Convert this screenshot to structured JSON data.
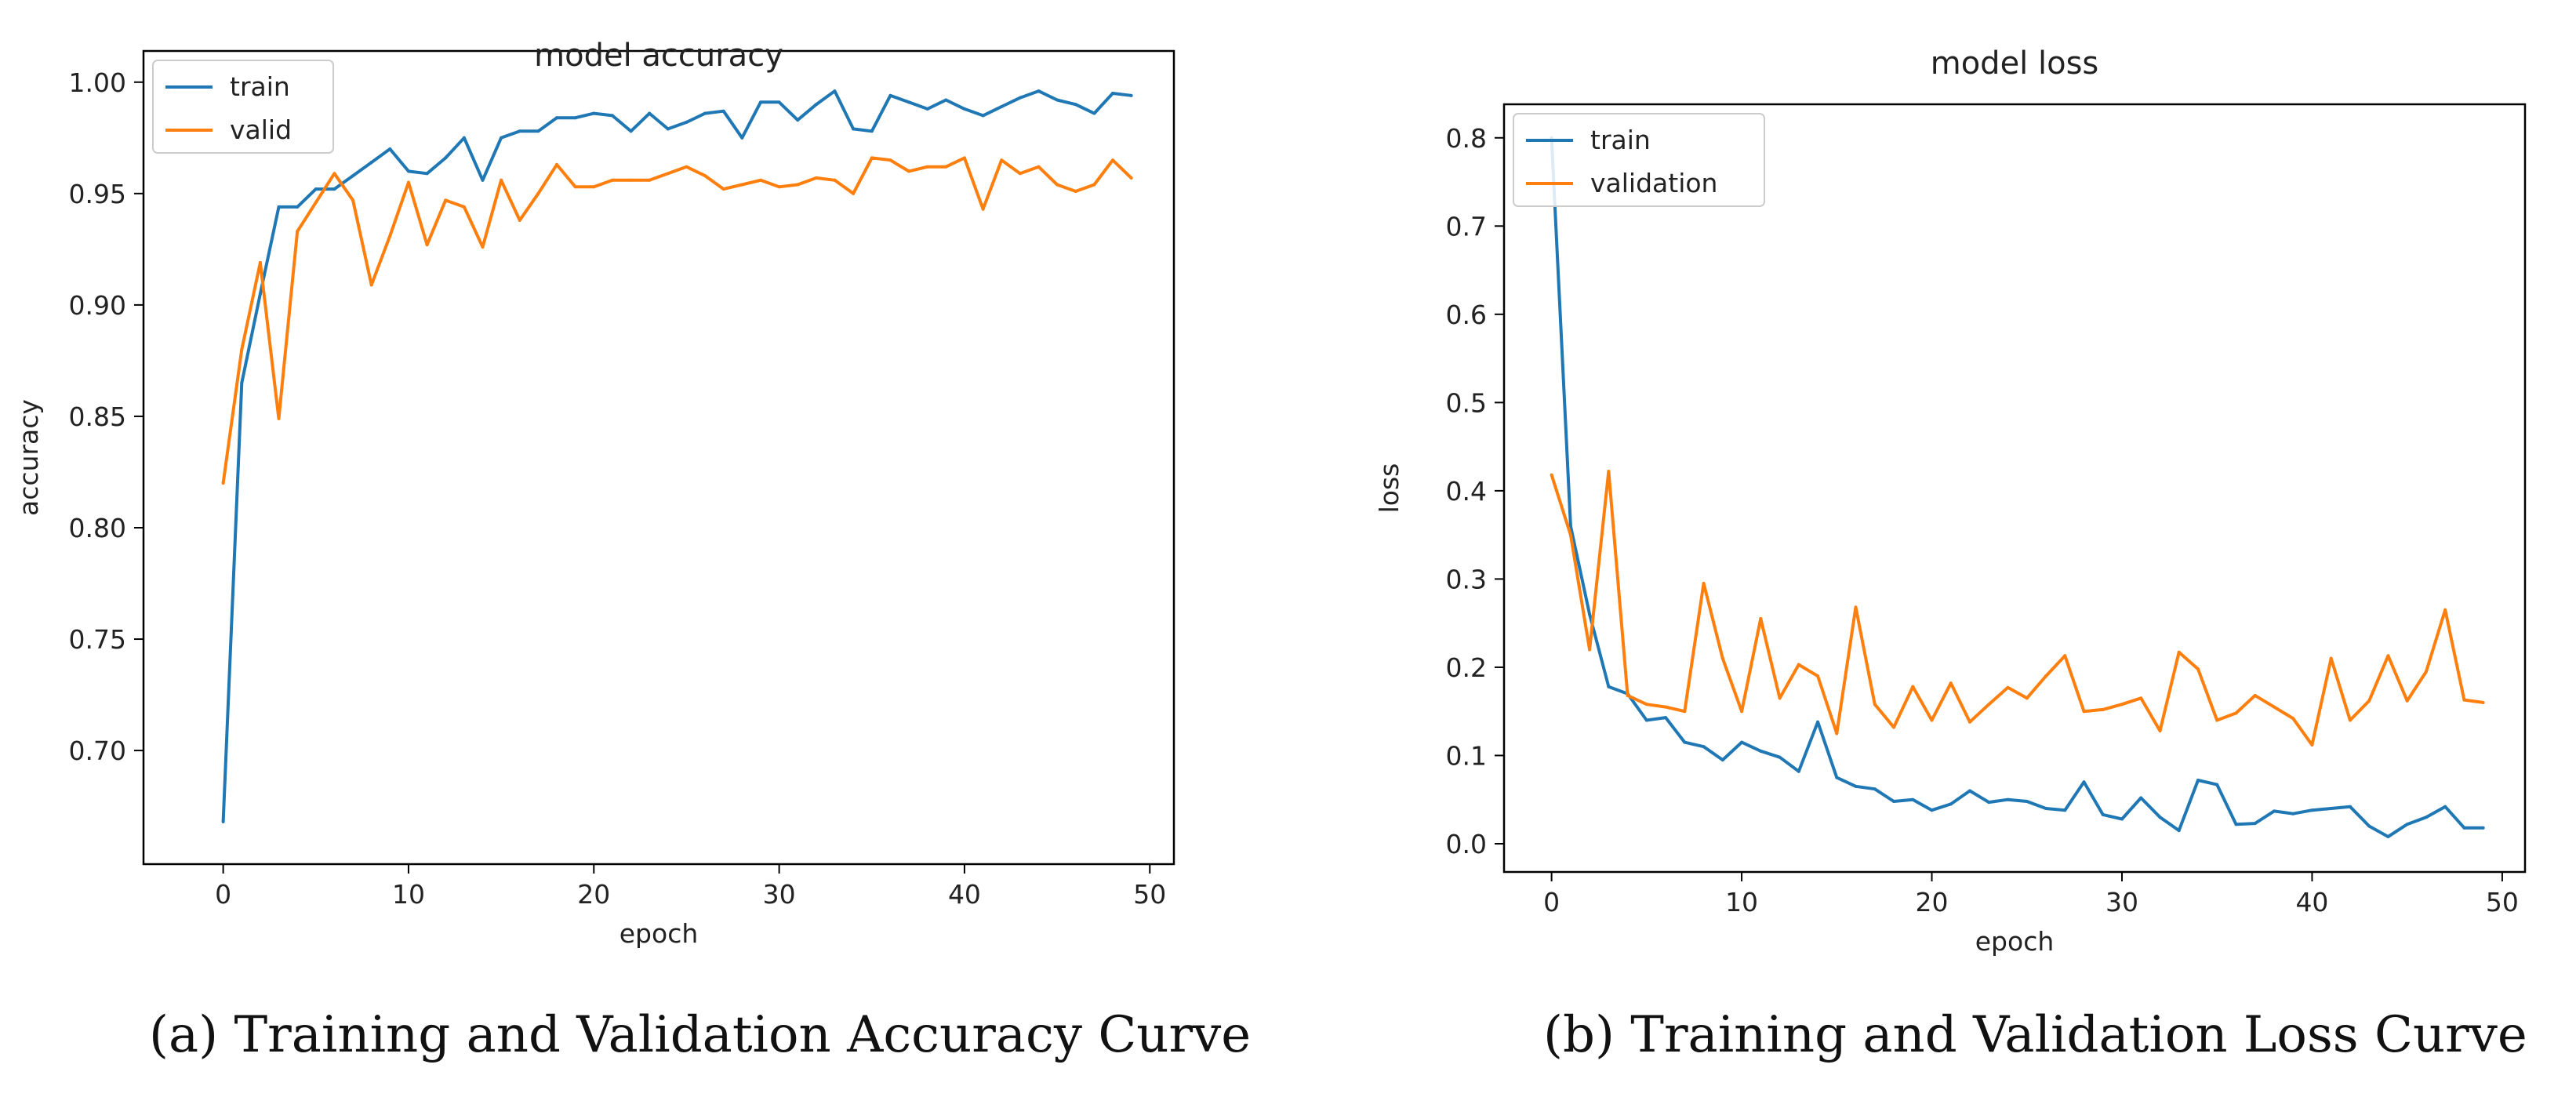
{
  "chart_data": [
    {
      "type": "line",
      "title": "model accuracy",
      "xlabel": "epoch",
      "ylabel": "accuracy",
      "xlim": [
        -4.3,
        51.3
      ],
      "ylim": [
        0.649,
        1.014
      ],
      "xticks": [
        0,
        10,
        20,
        30,
        40,
        50
      ],
      "yticks": [
        0.7,
        0.75,
        0.8,
        0.85,
        0.9,
        0.95,
        1.0
      ],
      "ytick_labels": [
        "0.70",
        "0.75",
        "0.80",
        "0.85",
        "0.90",
        "0.95",
        "1.00"
      ],
      "legend": "upper-left",
      "series": [
        {
          "name": "train",
          "color": "#1f77b4",
          "values": [
            0.668,
            0.865,
            0.905,
            0.944,
            0.944,
            0.952,
            0.952,
            0.958,
            0.964,
            0.97,
            0.96,
            0.959,
            0.966,
            0.975,
            0.956,
            0.975,
            0.978,
            0.978,
            0.984,
            0.984,
            0.986,
            0.985,
            0.978,
            0.986,
            0.979,
            0.982,
            0.986,
            0.987,
            0.975,
            0.991,
            0.991,
            0.983,
            0.99,
            0.996,
            0.979,
            0.978,
            0.994,
            0.991,
            0.988,
            0.992,
            0.988,
            0.985,
            0.989,
            0.993,
            0.996,
            0.992,
            0.99,
            0.986,
            0.995,
            0.994
          ]
        },
        {
          "name": "valid",
          "color": "#ff7f0e",
          "values": [
            0.82,
            0.88,
            0.919,
            0.849,
            0.933,
            0.946,
            0.959,
            0.947,
            0.909,
            0.931,
            0.955,
            0.927,
            0.947,
            0.944,
            0.926,
            0.956,
            0.938,
            0.95,
            0.963,
            0.953,
            0.953,
            0.956,
            0.956,
            0.956,
            0.959,
            0.962,
            0.958,
            0.952,
            0.954,
            0.956,
            0.953,
            0.954,
            0.957,
            0.956,
            0.95,
            0.966,
            0.965,
            0.96,
            0.962,
            0.962,
            0.966,
            0.943,
            0.965,
            0.959,
            0.962,
            0.954,
            0.951,
            0.954,
            0.965,
            0.957
          ]
        }
      ]
    },
    {
      "type": "line",
      "title": "model loss",
      "xlabel": "epoch",
      "ylabel": "loss",
      "xlim": [
        -2.5,
        51.2
      ],
      "ylim": [
        -0.032,
        0.838
      ],
      "xticks": [
        0,
        10,
        20,
        30,
        40,
        50
      ],
      "yticks": [
        0.0,
        0.1,
        0.2,
        0.3,
        0.4,
        0.5,
        0.6,
        0.7,
        0.8
      ],
      "ytick_labels": [
        "0.0",
        "0.1",
        "0.2",
        "0.3",
        "0.4",
        "0.5",
        "0.6",
        "0.7",
        "0.8"
      ],
      "legend": "upper-left",
      "series": [
        {
          "name": "train",
          "color": "#1f77b4",
          "values": [
            0.8,
            0.36,
            0.26,
            0.178,
            0.17,
            0.14,
            0.143,
            0.115,
            0.11,
            0.095,
            0.115,
            0.105,
            0.098,
            0.082,
            0.138,
            0.075,
            0.065,
            0.062,
            0.048,
            0.05,
            0.038,
            0.045,
            0.06,
            0.047,
            0.05,
            0.048,
            0.04,
            0.038,
            0.07,
            0.033,
            0.028,
            0.052,
            0.03,
            0.015,
            0.072,
            0.067,
            0.022,
            0.023,
            0.037,
            0.034,
            0.038,
            0.04,
            0.042,
            0.02,
            0.008,
            0.022,
            0.03,
            0.042,
            0.018,
            0.018
          ]
        },
        {
          "name": "validation",
          "color": "#ff7f0e",
          "values": [
            0.418,
            0.35,
            0.22,
            0.422,
            0.168,
            0.158,
            0.155,
            0.15,
            0.295,
            0.21,
            0.15,
            0.255,
            0.165,
            0.203,
            0.19,
            0.125,
            0.268,
            0.158,
            0.132,
            0.178,
            0.14,
            0.182,
            0.138,
            0.158,
            0.177,
            0.165,
            0.19,
            0.213,
            0.15,
            0.152,
            0.158,
            0.165,
            0.128,
            0.217,
            0.198,
            0.14,
            0.148,
            0.168,
            0.155,
            0.142,
            0.112,
            0.21,
            0.14,
            0.162,
            0.213,
            0.162,
            0.195,
            0.265,
            0.163,
            0.16
          ]
        }
      ]
    }
  ],
  "captions": {
    "a": "(a) Training and Validation Accuracy Curve",
    "b": "(b) Training and Validation Loss Curve"
  }
}
